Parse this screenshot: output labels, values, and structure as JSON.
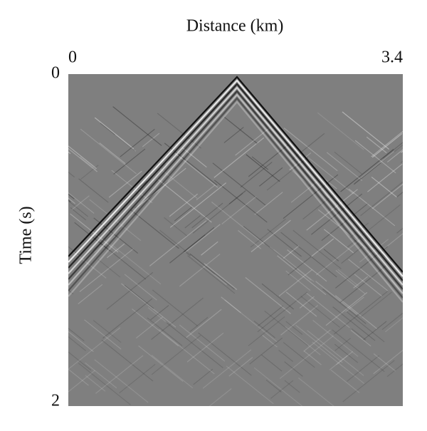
{
  "chart_data": {
    "type": "image",
    "xlabel": "Distance (km)",
    "ylabel": "Time (s)",
    "xlim": [
      0,
      3.4
    ],
    "xticks": [
      0,
      3.4
    ],
    "ylim": [
      0,
      2
    ],
    "yticks": [
      0,
      2
    ]
  }
}
